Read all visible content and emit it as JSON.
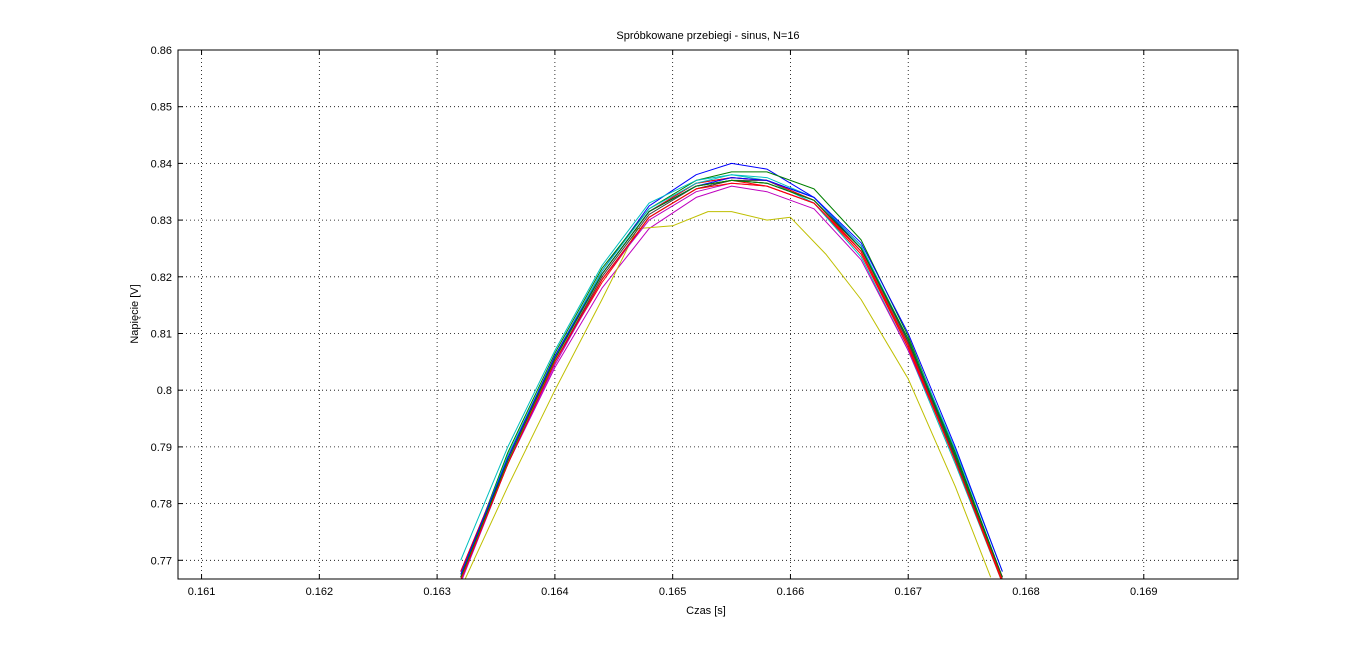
{
  "chart_data": {
    "type": "line",
    "title": "Spróbkowane przebiegi - sinus, N=16",
    "xlabel": "Czas [s]",
    "ylabel": "Napięcie [V]",
    "xlim": [
      0.1608,
      0.1698
    ],
    "ylim": [
      0.7667,
      0.86
    ],
    "xticks": [
      0.161,
      0.162,
      0.163,
      0.164,
      0.165,
      0.166,
      0.167,
      0.168,
      0.169
    ],
    "xtick_labels": [
      "0.161",
      "0.162",
      "0.163",
      "0.164",
      "0.165",
      "0.166",
      "0.167",
      "0.168",
      "0.169"
    ],
    "yticks": [
      0.77,
      0.78,
      0.79,
      0.8,
      0.81,
      0.82,
      0.83,
      0.84,
      0.85,
      0.86
    ],
    "ytick_labels": [
      "0.77",
      "0.78",
      "0.79",
      "0.8",
      "0.81",
      "0.82",
      "0.83",
      "0.84",
      "0.85",
      "0.86"
    ],
    "grid": true,
    "legend": "none",
    "series": [
      {
        "color": "#0000ff",
        "x": [
          0.1632,
          0.1636,
          0.164,
          0.1644,
          0.1648,
          0.1652,
          0.1655,
          0.1658,
          0.1662,
          0.1666,
          0.167,
          0.1674,
          0.1678
        ],
        "y": [
          0.767,
          0.788,
          0.806,
          0.821,
          0.8325,
          0.838,
          0.84,
          0.839,
          0.834,
          0.825,
          0.809,
          0.789,
          0.767
        ]
      },
      {
        "color": "#008000",
        "x": [
          0.1632,
          0.1636,
          0.164,
          0.1644,
          0.1648,
          0.1652,
          0.1655,
          0.1658,
          0.1662,
          0.1666,
          0.167,
          0.1674,
          0.1678
        ],
        "y": [
          0.767,
          0.789,
          0.8065,
          0.8215,
          0.832,
          0.837,
          0.8385,
          0.8385,
          0.8355,
          0.8265,
          0.8095,
          0.789,
          0.767
        ]
      },
      {
        "color": "#ff0000",
        "x": [
          0.1632,
          0.1636,
          0.164,
          0.1644,
          0.1648,
          0.1652,
          0.1655,
          0.1658,
          0.1662,
          0.1666,
          0.167,
          0.1674,
          0.1678
        ],
        "y": [
          0.767,
          0.787,
          0.805,
          0.819,
          0.8305,
          0.8355,
          0.837,
          0.836,
          0.833,
          0.824,
          0.8075,
          0.788,
          0.767
        ]
      },
      {
        "color": "#00bfbf",
        "x": [
          0.1632,
          0.1636,
          0.164,
          0.1644,
          0.1648,
          0.1652,
          0.1655,
          0.1658,
          0.1662,
          0.1666,
          0.167,
          0.1674,
          0.1678
        ],
        "y": [
          0.77,
          0.79,
          0.807,
          0.822,
          0.833,
          0.837,
          0.838,
          0.837,
          0.833,
          0.8235,
          0.807,
          0.787,
          0.766
        ]
      },
      {
        "color": "#bf00bf",
        "x": [
          0.1632,
          0.1636,
          0.164,
          0.1644,
          0.1648,
          0.1652,
          0.1655,
          0.1658,
          0.1662,
          0.1666,
          0.167,
          0.1674,
          0.1678
        ],
        "y": [
          0.766,
          0.787,
          0.804,
          0.818,
          0.8285,
          0.834,
          0.836,
          0.835,
          0.832,
          0.823,
          0.807,
          0.788,
          0.767
        ]
      },
      {
        "color": "#bfbf00",
        "x": [
          0.1632,
          0.1636,
          0.164,
          0.1644,
          0.1647,
          0.165,
          0.1653,
          0.1655,
          0.1658,
          0.166,
          0.1663,
          0.1666,
          0.167,
          0.1674,
          0.1677
        ],
        "y": [
          0.765,
          0.783,
          0.8,
          0.816,
          0.8285,
          0.829,
          0.8315,
          0.8315,
          0.83,
          0.8305,
          0.824,
          0.816,
          0.802,
          0.783,
          0.767
        ]
      },
      {
        "color": "#404040",
        "x": [
          0.1632,
          0.1636,
          0.164,
          0.1644,
          0.1648,
          0.1652,
          0.1655,
          0.1658,
          0.1662,
          0.1666,
          0.167,
          0.1674,
          0.1678
        ],
        "y": [
          0.767,
          0.787,
          0.805,
          0.82,
          0.831,
          0.836,
          0.837,
          0.837,
          0.8335,
          0.8245,
          0.808,
          0.788,
          0.767
        ]
      },
      {
        "color": "#0000ff",
        "x": [
          0.1632,
          0.1636,
          0.164,
          0.1644,
          0.1648,
          0.1652,
          0.1655,
          0.1658,
          0.1662,
          0.1666,
          0.167,
          0.1674,
          0.1678
        ],
        "y": [
          0.768,
          0.788,
          0.8055,
          0.8205,
          0.8315,
          0.8365,
          0.8375,
          0.837,
          0.834,
          0.8255,
          0.8085,
          0.7885,
          0.7665
        ]
      },
      {
        "color": "#008000",
        "x": [
          0.1632,
          0.1636,
          0.164,
          0.1644,
          0.1648,
          0.1652,
          0.1655,
          0.1658,
          0.1662,
          0.1666,
          0.167,
          0.1674,
          0.1678
        ],
        "y": [
          0.767,
          0.788,
          0.806,
          0.8205,
          0.8315,
          0.836,
          0.837,
          0.8365,
          0.8335,
          0.825,
          0.8085,
          0.788,
          0.7665
        ]
      },
      {
        "color": "#ff0000",
        "x": [
          0.1632,
          0.1636,
          0.164,
          0.1644,
          0.1648,
          0.1652,
          0.1655,
          0.1658,
          0.1662,
          0.1666,
          0.167,
          0.1674,
          0.1678
        ],
        "y": [
          0.768,
          0.788,
          0.8055,
          0.8205,
          0.8315,
          0.8365,
          0.8375,
          0.837,
          0.8335,
          0.8245,
          0.8075,
          0.7875,
          0.766
        ]
      },
      {
        "color": "#00bfbf",
        "x": [
          0.1632,
          0.1636,
          0.164,
          0.1644,
          0.1648,
          0.1652,
          0.1655,
          0.1658,
          0.1662,
          0.1666,
          0.167,
          0.1674,
          0.1678
        ],
        "y": [
          0.767,
          0.7885,
          0.806,
          0.821,
          0.832,
          0.8365,
          0.838,
          0.8375,
          0.834,
          0.8255,
          0.809,
          0.7895,
          0.768
        ]
      },
      {
        "color": "#bf00bf",
        "x": [
          0.1632,
          0.1636,
          0.164,
          0.1644,
          0.1648,
          0.1652,
          0.1655,
          0.1658,
          0.1662,
          0.1666,
          0.167,
          0.1674,
          0.1678
        ],
        "y": [
          0.767,
          0.787,
          0.8045,
          0.8195,
          0.83,
          0.835,
          0.8365,
          0.836,
          0.833,
          0.8245,
          0.808,
          0.788,
          0.767
        ]
      },
      {
        "color": "#404040",
        "x": [
          0.1632,
          0.1636,
          0.164,
          0.1644,
          0.1648,
          0.1652,
          0.1655,
          0.1658,
          0.1662,
          0.1666,
          0.167,
          0.1674,
          0.1678
        ],
        "y": [
          0.7665,
          0.787,
          0.805,
          0.8195,
          0.8305,
          0.8355,
          0.837,
          0.8365,
          0.8335,
          0.825,
          0.8085,
          0.788,
          0.7665
        ]
      },
      {
        "color": "#0000ff",
        "x": [
          0.1632,
          0.1636,
          0.164,
          0.1644,
          0.1648,
          0.1652,
          0.1655,
          0.1658,
          0.1662,
          0.1666,
          0.167,
          0.1674,
          0.1678
        ],
        "y": [
          0.7675,
          0.788,
          0.806,
          0.8205,
          0.8315,
          0.836,
          0.8375,
          0.837,
          0.834,
          0.826,
          0.81,
          0.79,
          0.768
        ]
      },
      {
        "color": "#008000",
        "x": [
          0.1632,
          0.1636,
          0.164,
          0.1644,
          0.1648,
          0.1652,
          0.1655,
          0.1658,
          0.1662,
          0.1666,
          0.167,
          0.1674,
          0.1678
        ],
        "y": [
          0.767,
          0.7875,
          0.8055,
          0.8205,
          0.8315,
          0.836,
          0.837,
          0.8365,
          0.8335,
          0.825,
          0.809,
          0.7885,
          0.767
        ]
      },
      {
        "color": "#ff0000",
        "x": [
          0.1632,
          0.1636,
          0.164,
          0.1644,
          0.1648,
          0.1652,
          0.1655,
          0.1658,
          0.1662,
          0.1666,
          0.167,
          0.1674,
          0.1678
        ],
        "y": [
          0.7665,
          0.787,
          0.805,
          0.8195,
          0.8305,
          0.8355,
          0.8365,
          0.836,
          0.833,
          0.8245,
          0.808,
          0.7875,
          0.7665
        ]
      }
    ]
  }
}
